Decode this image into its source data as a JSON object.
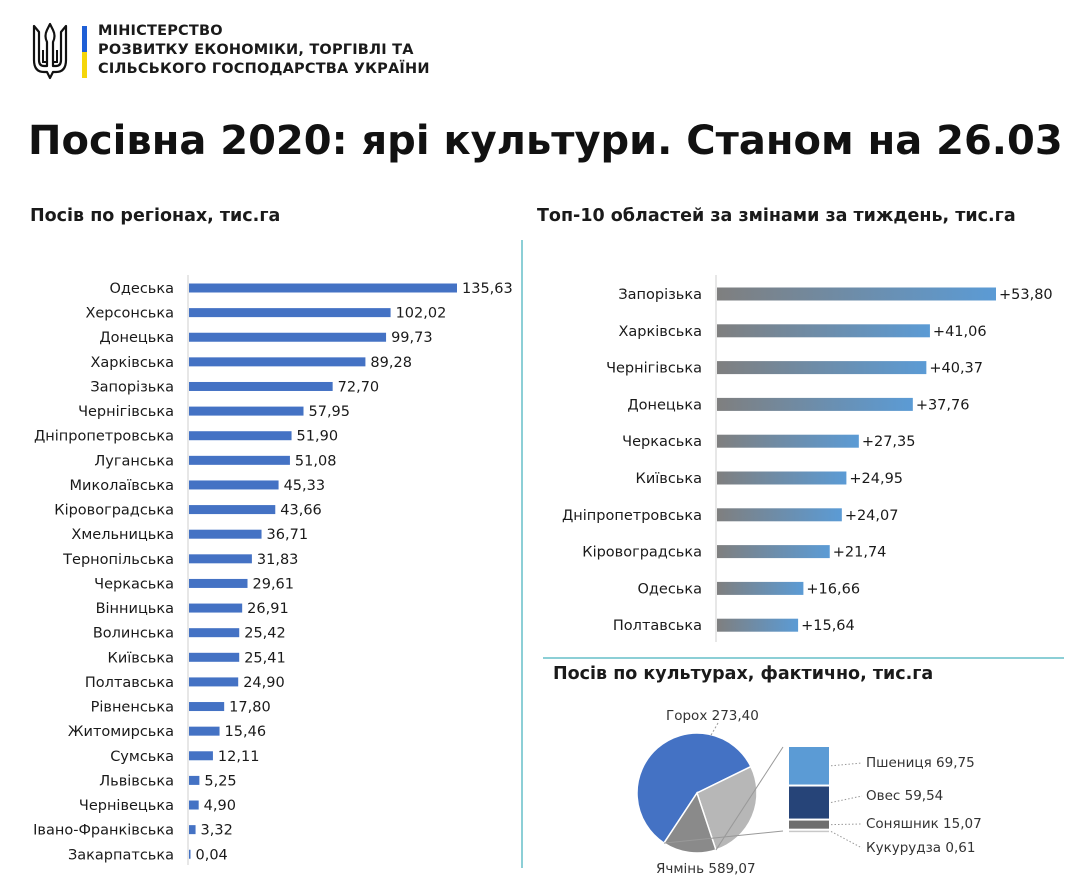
{
  "header": {
    "ministry_lines": [
      "МІНІСТЕРСТВО",
      "РОЗВИТКУ ЕКОНОМІКИ, ТОРГІВЛІ ТА",
      "СІЛЬСЬКОГО ГОСПОДАРСТВА УКРАЇНИ"
    ]
  },
  "title": "Посівна 2020: ярі культури. Станом на 26.03",
  "colors": {
    "bar_blue": "#4472c4",
    "flag_blue": "#1f5fd6",
    "flag_yellow": "#f5d60a",
    "divider": "#8ccfd6"
  },
  "chart_data": [
    {
      "type": "bar",
      "orientation": "horizontal",
      "title": "Посів по регіонах, тис.га",
      "categories": [
        "Одеська",
        "Херсонська",
        "Донецька",
        "Харківська",
        "Запорізька",
        "Чернігівська",
        "Дніпропетровська",
        "Луганська",
        "Миколаївська",
        "Кіровоградська",
        "Хмельницька",
        "Тернопільська",
        "Черкаська",
        "Вінницька",
        "Волинська",
        "Київська",
        "Полтавська",
        "Рівненська",
        "Житомирська",
        "Сумська",
        "Львівська",
        "Чернівецька",
        "Івано-Франківська",
        "Закарпатська"
      ],
      "values": [
        135.63,
        102.02,
        99.73,
        89.28,
        72.7,
        57.95,
        51.9,
        51.08,
        45.33,
        43.66,
        36.71,
        31.83,
        29.61,
        26.91,
        25.42,
        25.41,
        24.9,
        17.8,
        15.46,
        12.11,
        5.25,
        4.9,
        3.32,
        0.04
      ],
      "labels": [
        "135,63",
        "102,02",
        "99,73",
        "89,28",
        "72,70",
        "57,95",
        "51,90",
        "51,08",
        "45,33",
        "43,66",
        "36,71",
        "31,83",
        "29,61",
        "26,91",
        "25,42",
        "25,41",
        "24,90",
        "17,80",
        "15,46",
        "12,11",
        "5,25",
        "4,90",
        "3,32",
        "0,04"
      ]
    },
    {
      "type": "bar",
      "orientation": "horizontal",
      "title": "Топ-10 областей за змінами  за тиждень, тис.га",
      "categories": [
        "Запорізька",
        "Харківська",
        "Чернігівська",
        "Донецька",
        "Черкаська",
        "Київська",
        "Дніпропетровська",
        "Кіровоградська",
        "Одеська",
        "Полтавська"
      ],
      "values": [
        53.8,
        41.06,
        40.37,
        37.76,
        27.35,
        24.95,
        24.07,
        21.74,
        16.66,
        15.64
      ],
      "labels": [
        "+53,80",
        "+41,06",
        "+40,37",
        "+37,76",
        "+27,35",
        "+24,95",
        "+24,07",
        "+21,74",
        "+16,66",
        "+15,64"
      ]
    },
    {
      "type": "pie",
      "title": "Посів по культурах, фактично, тис.га",
      "slices": [
        {
          "name": "Ячмінь",
          "value": 589.07,
          "label": "Ячмінь 589,07",
          "color": "#4472c4"
        },
        {
          "name": "Горох",
          "value": 273.4,
          "label": "Горох 273,40",
          "color": "#b7b7b7"
        },
        {
          "name": "Інші",
          "value": 144.97,
          "label": "",
          "color": "#8a8a8a"
        }
      ],
      "breakdown": [
        {
          "name": "Пшениця",
          "value": 69.75,
          "label": "Пшениця 69,75",
          "color": "#5b9bd5"
        },
        {
          "name": "Овес",
          "value": 59.54,
          "label": "Овес 59,54",
          "color": "#264478"
        },
        {
          "name": "Соняшник",
          "value": 15.07,
          "label": "Соняшник 15,07",
          "color": "#6e6e6e"
        },
        {
          "name": "Кукурудза",
          "value": 0.61,
          "label": "Кукурудза 0,61",
          "color": "#c8c8c8"
        }
      ]
    }
  ]
}
